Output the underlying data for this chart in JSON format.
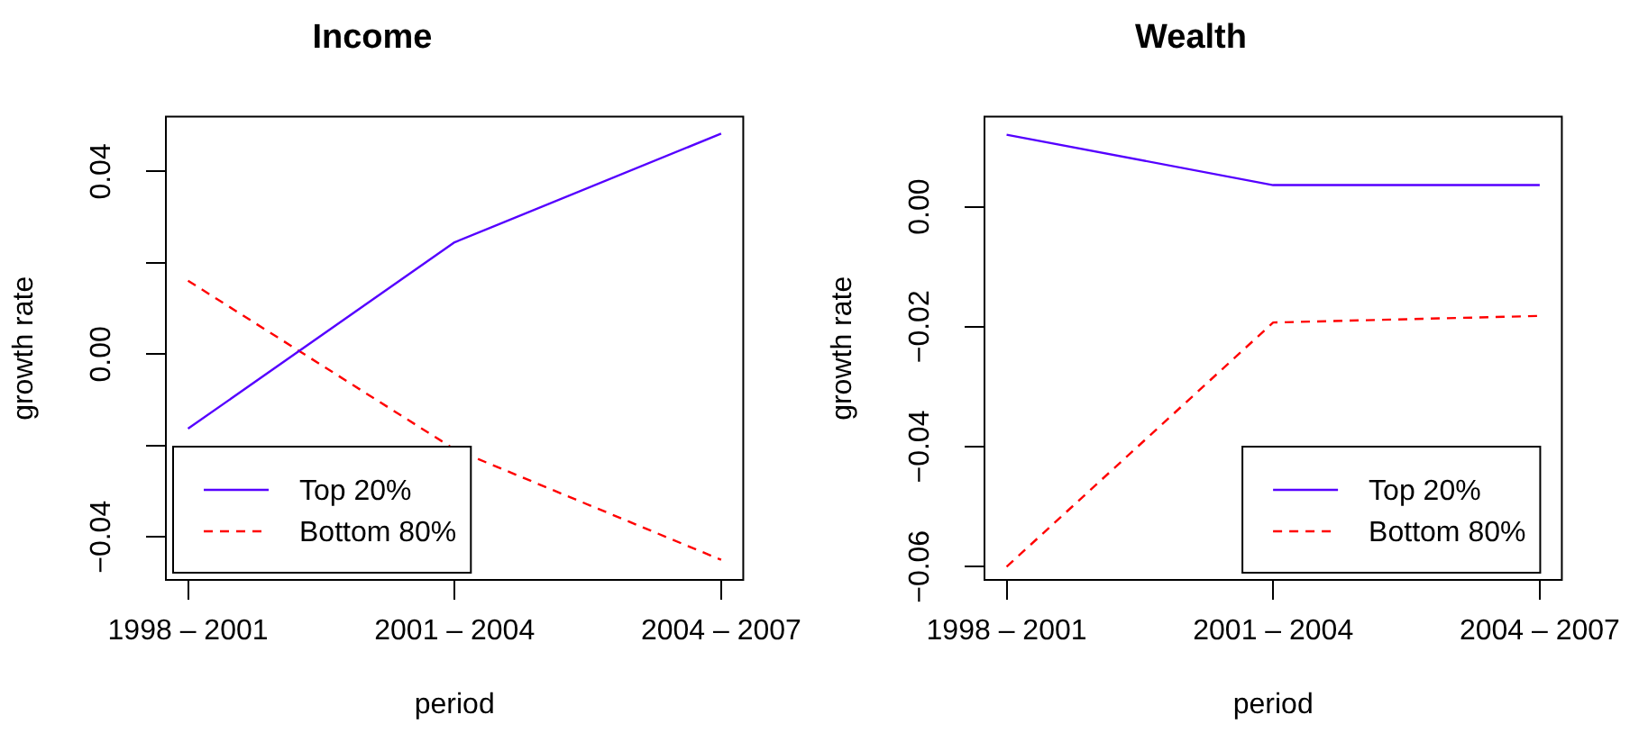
{
  "chart_data": [
    {
      "type": "line",
      "title": "Income",
      "xlabel": "period",
      "ylabel": "growth rate",
      "categories": [
        "1998 – 2001",
        "2001 – 2004",
        "2004 – 2007"
      ],
      "series": [
        {
          "name": "Top 20%",
          "color": "#5500ff",
          "line_style": "solid",
          "values": [
            -0.0163,
            0.0245,
            0.0483
          ]
        },
        {
          "name": "Bottom 80%",
          "color": "#ff0000",
          "line_style": "dashed",
          "values": [
            0.0161,
            -0.0208,
            -0.045
          ]
        }
      ],
      "ylim": [
        -0.0494,
        0.052
      ],
      "yticks": [
        {
          "value": -0.04,
          "label": "−0.04"
        },
        {
          "value": -0.02,
          "label": null
        },
        {
          "value": 0,
          "label": "0.00"
        },
        {
          "value": 0.02,
          "label": null
        },
        {
          "value": 0.04,
          "label": "0.04"
        }
      ],
      "grid": false,
      "legend": "bottom left",
      "marker": "none"
    },
    {
      "type": "line",
      "title": "Wealth",
      "xlabel": "period",
      "ylabel": "growth rate",
      "categories": [
        "1998 – 2001",
        "2001 – 2004",
        "2004 – 2007"
      ],
      "series": [
        {
          "name": "Top 20%",
          "color": "#5500ff",
          "line_style": "solid",
          "values": [
            0.012,
            0.0036,
            0.0036
          ]
        },
        {
          "name": "Bottom 80%",
          "color": "#ff0000",
          "line_style": "dashed",
          "values": [
            -0.06,
            -0.0193,
            -0.0182
          ]
        }
      ],
      "ylim": [
        -0.0622,
        0.015
      ],
      "yticks": [
        {
          "value": -0.06,
          "label": "−0.06"
        },
        {
          "value": -0.04,
          "label": "−0.04"
        },
        {
          "value": -0.02,
          "label": "−0.02"
        },
        {
          "value": 0,
          "label": "0.00"
        }
      ],
      "grid": false,
      "legend": "bottom right",
      "marker": "none"
    }
  ]
}
